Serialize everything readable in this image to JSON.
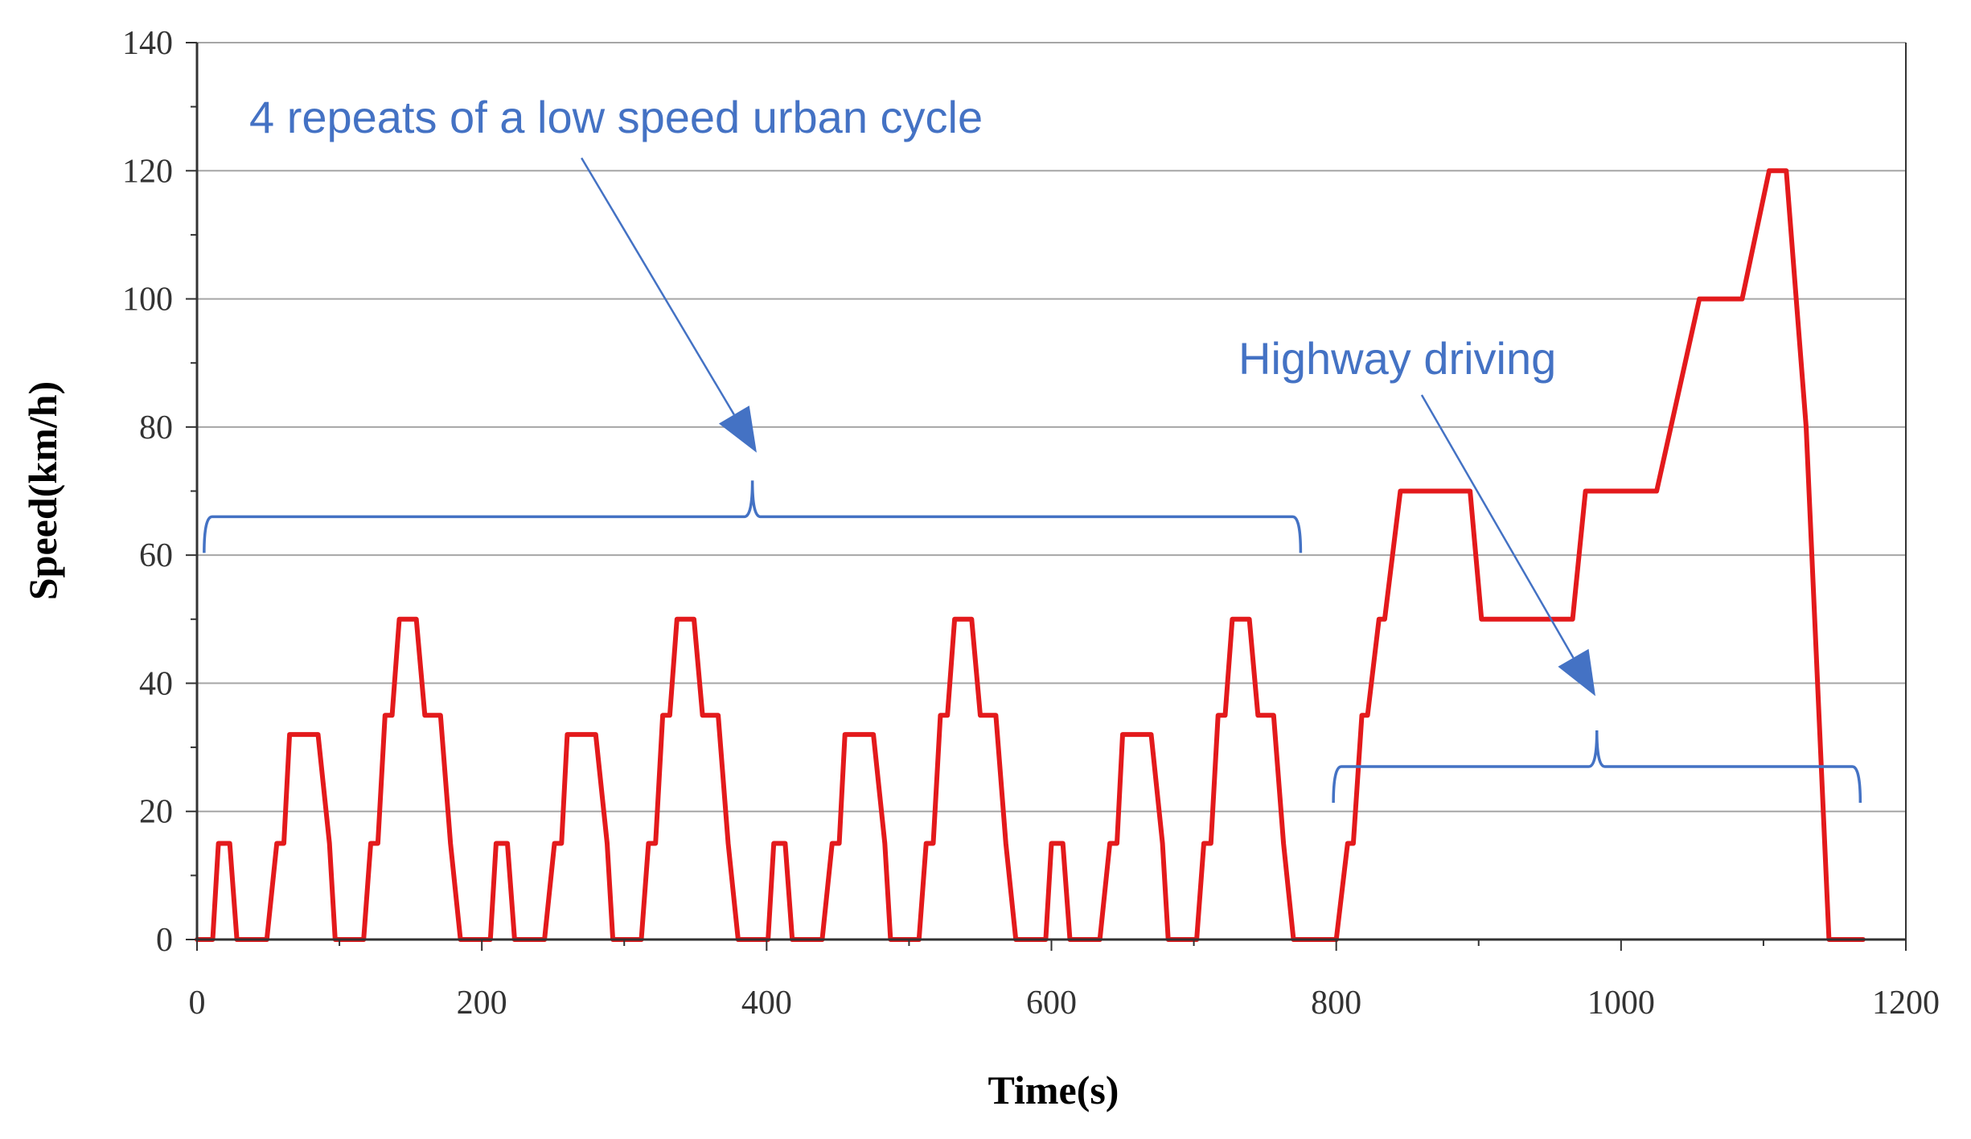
{
  "chart_data": {
    "type": "line",
    "xlabel": "Time(s)",
    "ylabel": "Speed(km/h)",
    "xlim": [
      0,
      1200
    ],
    "ylim": [
      0,
      140
    ],
    "x_ticks": [
      0,
      200,
      400,
      600,
      800,
      1000,
      1200
    ],
    "y_ticks": [
      0,
      20,
      40,
      60,
      80,
      100,
      120,
      140
    ],
    "grid": "horizontal",
    "colors": {
      "series": "#e31a1c",
      "annotation": "#4472c4",
      "grid": "#a6a6a6",
      "axis": "#333333"
    },
    "series": [
      {
        "values": [
          [
            0,
            0
          ],
          [
            11,
            0
          ],
          [
            15,
            15
          ],
          [
            23,
            15
          ],
          [
            28,
            0
          ],
          [
            49,
            0
          ],
          [
            56,
            15
          ],
          [
            61,
            15
          ],
          [
            65,
            32
          ],
          [
            85,
            32
          ],
          [
            93,
            15
          ],
          [
            97,
            0
          ],
          [
            117,
            0
          ],
          [
            122,
            15
          ],
          [
            127,
            15
          ],
          [
            132,
            35
          ],
          [
            137,
            35
          ],
          [
            142,
            50
          ],
          [
            154,
            50
          ],
          [
            160,
            35
          ],
          [
            171,
            35
          ],
          [
            178,
            15
          ],
          [
            185,
            0
          ],
          [
            206,
            0
          ],
          [
            210,
            15
          ],
          [
            218,
            15
          ],
          [
            223,
            0
          ],
          [
            244,
            0
          ],
          [
            251,
            15
          ],
          [
            256,
            15
          ],
          [
            260,
            32
          ],
          [
            280,
            32
          ],
          [
            288,
            15
          ],
          [
            292,
            0
          ],
          [
            312,
            0
          ],
          [
            317,
            15
          ],
          [
            322,
            15
          ],
          [
            327,
            35
          ],
          [
            332,
            35
          ],
          [
            337,
            50
          ],
          [
            349,
            50
          ],
          [
            355,
            35
          ],
          [
            366,
            35
          ],
          [
            373,
            15
          ],
          [
            380,
            0
          ],
          [
            401,
            0
          ],
          [
            405,
            15
          ],
          [
            413,
            15
          ],
          [
            418,
            0
          ],
          [
            439,
            0
          ],
          [
            446,
            15
          ],
          [
            451,
            15
          ],
          [
            455,
            32
          ],
          [
            475,
            32
          ],
          [
            483,
            15
          ],
          [
            487,
            0
          ],
          [
            507,
            0
          ],
          [
            512,
            15
          ],
          [
            517,
            15
          ],
          [
            522,
            35
          ],
          [
            527,
            35
          ],
          [
            532,
            50
          ],
          [
            544,
            50
          ],
          [
            550,
            35
          ],
          [
            561,
            35
          ],
          [
            568,
            15
          ],
          [
            575,
            0
          ],
          [
            596,
            0
          ],
          [
            600,
            15
          ],
          [
            608,
            15
          ],
          [
            613,
            0
          ],
          [
            634,
            0
          ],
          [
            641,
            15
          ],
          [
            646,
            15
          ],
          [
            650,
            32
          ],
          [
            670,
            32
          ],
          [
            678,
            15
          ],
          [
            682,
            0
          ],
          [
            702,
            0
          ],
          [
            707,
            15
          ],
          [
            712,
            15
          ],
          [
            717,
            35
          ],
          [
            722,
            35
          ],
          [
            727,
            50
          ],
          [
            739,
            50
          ],
          [
            745,
            35
          ],
          [
            756,
            35
          ],
          [
            763,
            15
          ],
          [
            770,
            0
          ],
          [
            800,
            0
          ],
          [
            808,
            15
          ],
          [
            812,
            15
          ],
          [
            818,
            35
          ],
          [
            822,
            35
          ],
          [
            830,
            50
          ],
          [
            834,
            50
          ],
          [
            845,
            70
          ],
          [
            894,
            70
          ],
          [
            902,
            50
          ],
          [
            966,
            50
          ],
          [
            975,
            70
          ],
          [
            1025,
            70
          ],
          [
            1055,
            100
          ],
          [
            1085,
            100
          ],
          [
            1104,
            120
          ],
          [
            1116,
            120
          ],
          [
            1130,
            80
          ],
          [
            1146,
            0
          ],
          [
            1170,
            0
          ]
        ]
      }
    ],
    "annotations": [
      {
        "text": "4 repeats of a low speed urban cycle",
        "brace_from": 5,
        "brace_to": 775,
        "brace_level": 66,
        "arrow_tip": [
          393,
          76
        ],
        "arrow_tail": [
          270,
          122
        ]
      },
      {
        "text": "Highway driving",
        "brace_from": 798,
        "brace_to": 1168,
        "brace_level": 27,
        "arrow_tip": [
          982,
          38
        ],
        "arrow_tail": [
          860,
          85
        ]
      }
    ]
  }
}
